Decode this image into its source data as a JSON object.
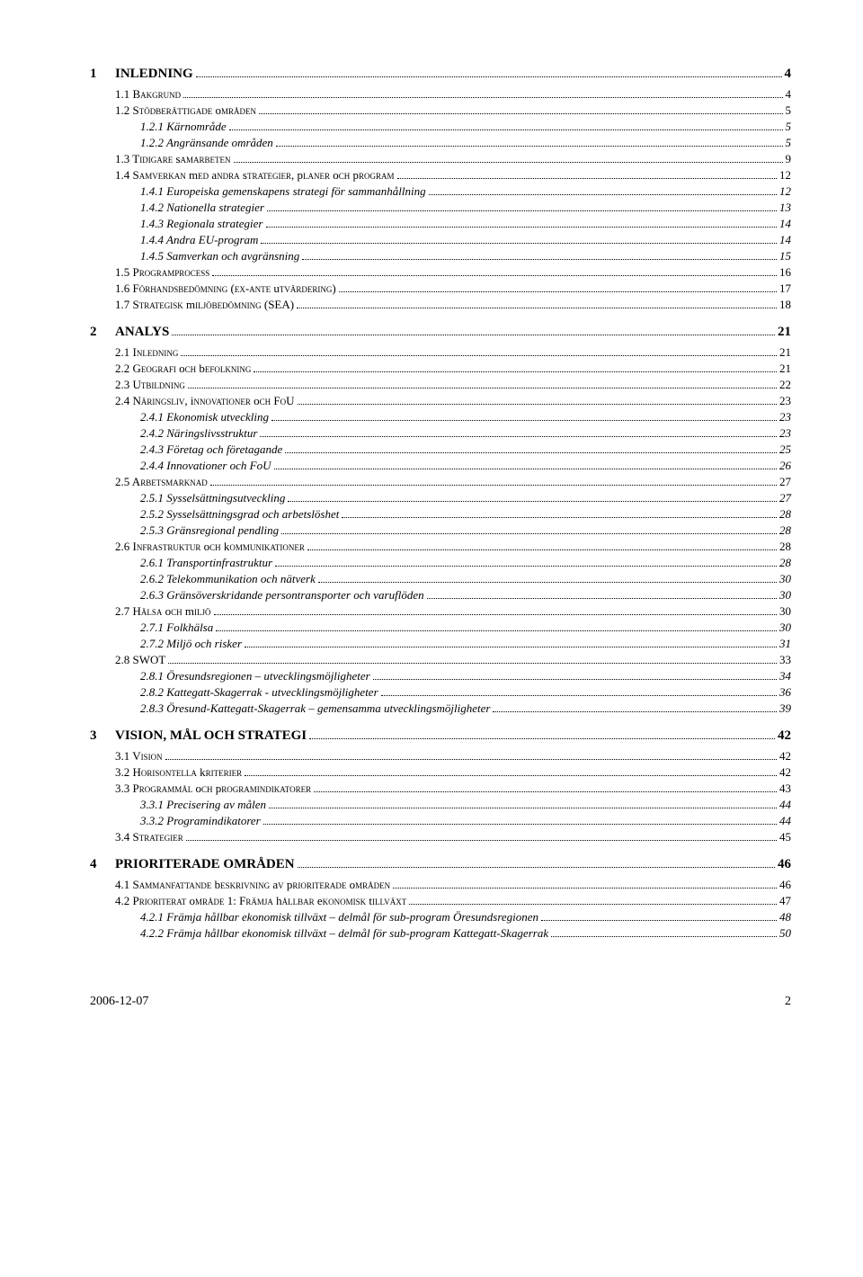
{
  "toc": [
    {
      "level": 1,
      "num": "1",
      "label": "INLEDNING",
      "page": "4"
    },
    {
      "level": 2,
      "label": "1.1 Bakgrund",
      "caps": true,
      "page": "4"
    },
    {
      "level": 2,
      "label": "1.2 Stödberättigade områden",
      "caps": true,
      "page": "5"
    },
    {
      "level": 3,
      "label": "1.2.1 Kärnområde",
      "page": "5"
    },
    {
      "level": 3,
      "label": "1.2.2 Angränsande områden",
      "page": "5"
    },
    {
      "level": 2,
      "label": "1.3 Tidigare samarbeten",
      "caps": true,
      "page": "9"
    },
    {
      "level": 2,
      "label": "1.4 Samverkan med andra strategier, planer och program",
      "caps": true,
      "page": "12"
    },
    {
      "level": 3,
      "label": "1.4.1 Europeiska gemenskapens strategi för sammanhållning",
      "page": "12"
    },
    {
      "level": 3,
      "label": "1.4.2 Nationella strategier",
      "page": "13"
    },
    {
      "level": 3,
      "label": "1.4.3 Regionala strategier",
      "page": "14"
    },
    {
      "level": 3,
      "label": "1.4.4 Andra EU-program",
      "page": "14"
    },
    {
      "level": 3,
      "label": "1.4.5 Samverkan och avgränsning",
      "page": "15"
    },
    {
      "level": 2,
      "label": "1.5 Programprocess",
      "caps": true,
      "page": "16"
    },
    {
      "level": 2,
      "label": "1.6 Förhandsbedömning (ex-ante utvärdering)",
      "caps": true,
      "page": "17"
    },
    {
      "level": 2,
      "label": "1.7 Strategisk miljöbedömning (SEA)",
      "caps": true,
      "page": "18"
    },
    {
      "level": 1,
      "num": "2",
      "label": "ANALYS",
      "page": "21"
    },
    {
      "level": 2,
      "label": "2.1 Inledning",
      "caps": true,
      "page": "21"
    },
    {
      "level": 2,
      "label": "2.2 Geografi och befolkning",
      "caps": true,
      "page": "21"
    },
    {
      "level": 2,
      "label": "2.3 Utbildning",
      "caps": true,
      "page": "22"
    },
    {
      "level": 2,
      "label": "2.4 Näringsliv, innovationer och FoU",
      "caps": true,
      "page": "23"
    },
    {
      "level": 3,
      "label": "2.4.1 Ekonomisk utveckling",
      "page": "23"
    },
    {
      "level": 3,
      "label": "2.4.2 Näringslivsstruktur",
      "page": "23"
    },
    {
      "level": 3,
      "label": "2.4.3 Företag och företagande",
      "page": "25"
    },
    {
      "level": 3,
      "label": "2.4.4 Innovationer och FoU",
      "page": "26"
    },
    {
      "level": 2,
      "label": "2.5 Arbetsmarknad",
      "caps": true,
      "page": "27"
    },
    {
      "level": 3,
      "label": "2.5.1 Sysselsättningsutveckling",
      "page": "27"
    },
    {
      "level": 3,
      "label": "2.5.2 Sysselsättningsgrad och arbetslöshet",
      "page": "28"
    },
    {
      "level": 3,
      "label": "2.5.3 Gränsregional pendling",
      "page": "28"
    },
    {
      "level": 2,
      "label": "2.6 Infrastruktur och kommunikationer",
      "caps": true,
      "page": "28"
    },
    {
      "level": 3,
      "label": "2.6.1 Transportinfrastruktur",
      "page": "28"
    },
    {
      "level": 3,
      "label": "2.6.2 Telekommunikation och nätverk",
      "page": "30"
    },
    {
      "level": 3,
      "label": "2.6.3 Gränsöverskridande persontransporter och varuflöden",
      "page": "30"
    },
    {
      "level": 2,
      "label": "2.7 Hälsa och miljö",
      "caps": true,
      "page": "30"
    },
    {
      "level": 3,
      "label": "2.7.1 Folkhälsa",
      "page": "30"
    },
    {
      "level": 3,
      "label": "2.7.2 Miljö och risker",
      "page": "31"
    },
    {
      "level": 2,
      "label": "2.8 SWOT",
      "page": "33"
    },
    {
      "level": 3,
      "label": "2.8.1 Öresundsregionen – utvecklingsmöjligheter",
      "page": "34"
    },
    {
      "level": 3,
      "label": "2.8.2 Kattegatt-Skagerrak - utvecklingsmöjligheter",
      "page": "36"
    },
    {
      "level": 3,
      "label": "2.8.3 Öresund-Kattegatt-Skagerrak – gemensamma utvecklingsmöjligheter",
      "page": "39"
    },
    {
      "level": 1,
      "num": "3",
      "label": "VISION, MÅL OCH STRATEGI",
      "page": "42"
    },
    {
      "level": 2,
      "label": "3.1 Vision",
      "caps": true,
      "page": "42"
    },
    {
      "level": 2,
      "label": "3.2 Horisontella kriterier",
      "caps": true,
      "page": "42"
    },
    {
      "level": 2,
      "label": "3.3 Programmål och programindikatorer",
      "caps": true,
      "page": "43"
    },
    {
      "level": 3,
      "label": "3.3.1 Precisering av målen",
      "page": "44"
    },
    {
      "level": 3,
      "label": "3.3.2 Programindikatorer",
      "page": "44"
    },
    {
      "level": 2,
      "label": "3.4 Strategier",
      "caps": true,
      "page": "45"
    },
    {
      "level": 1,
      "num": "4",
      "label": "PRIORITERADE OMRÅDEN",
      "page": "46"
    },
    {
      "level": 2,
      "label": "4.1 Sammanfattande beskrivning av prioriterade områden",
      "caps": true,
      "page": "46"
    },
    {
      "level": 2,
      "label": "4.2 Prioriterat område 1: Främja hållbar ekonomisk tillväxt",
      "caps": true,
      "page": "47"
    },
    {
      "level": 3,
      "label": "4.2.1 Främja hållbar ekonomisk tillväxt – delmål för sub-program Öresundsregionen",
      "page": "48"
    },
    {
      "level": 3,
      "label": "4.2.2 Främja hållbar ekonomisk tillväxt – delmål för sub-program Kattegatt-Skagerrak",
      "page": "50"
    }
  ],
  "footer": {
    "date": "2006-12-07",
    "page": "2"
  }
}
